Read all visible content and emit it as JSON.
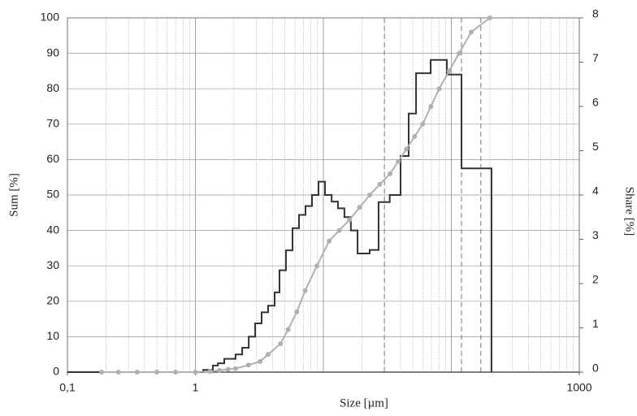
{
  "chart_data": {
    "type": "histogram",
    "xlabel": "Size [µm]",
    "ylabel": "Sum [%]",
    "y2label": "Share [%]",
    "xscale": "log",
    "xlim": [
      0.1,
      1000
    ],
    "xticks": [
      {
        "value": 0.1,
        "label": "0,1"
      },
      1,
      1000
    ],
    "ylim": [
      0,
      100
    ],
    "yticks": [
      0,
      10,
      20,
      30,
      40,
      50,
      60,
      70,
      80,
      90,
      100
    ],
    "y2lim": [
      0,
      8
    ],
    "y2ticks": [
      0,
      1,
      2,
      3,
      4,
      5,
      6,
      7,
      8
    ],
    "grid": true,
    "vlines": [
      30,
      120,
      170
    ],
    "series": [
      {
        "name": "Share",
        "type": "histogram",
        "axis": "y2",
        "color": "#333333",
        "bins": [
          1.15,
          1.37,
          1.5,
          1.68,
          2.06,
          2.32,
          2.61,
          2.93,
          3.29,
          3.7,
          4.16,
          4.54,
          5.1,
          5.74,
          6.45,
          7.25,
          8.15,
          9.16,
          10.3,
          11.6,
          13,
          14.6,
          16.4,
          18.5,
          23,
          27,
          33,
          40.1,
          46.4,
          53,
          61.3,
          68.9,
          92.2,
          120,
          143,
          206
        ],
        "values": [
          0.05,
          0.15,
          0.2,
          0.3,
          0.4,
          0.55,
          0.8,
          1.1,
          1.35,
          1.5,
          1.8,
          2.3,
          2.75,
          3.25,
          3.55,
          3.75,
          4.0,
          4.3,
          4.0,
          3.85,
          3.7,
          3.5,
          3.2,
          2.68,
          2.76,
          3.84,
          4.0,
          4.88,
          5.84,
          6.75,
          6.75,
          7.05,
          6.72,
          4.6,
          4.6
        ]
      },
      {
        "name": "Sum",
        "type": "line",
        "axis": "y",
        "color": "#b0b0b0",
        "x": [
          0.185,
          0.25,
          0.35,
          0.5,
          0.7,
          1.0,
          1.3,
          1.54,
          1.8,
          2.06,
          2.6,
          3.2,
          3.7,
          4.62,
          5.3,
          6.2,
          7.2,
          8.9,
          11.1,
          13.3,
          16.0,
          19.2,
          23.0,
          27.6,
          33.2,
          38.5,
          44.6,
          51.6,
          59.7,
          69.2,
          80.3,
          96,
          115,
          143,
          200
        ],
        "values": [
          0,
          0,
          0,
          0,
          0,
          0,
          0.2,
          0.5,
          0.8,
          1,
          2,
          3,
          5,
          8,
          12,
          17,
          23,
          30,
          37,
          40,
          43,
          46.5,
          50,
          53,
          56,
          59.5,
          63,
          66.5,
          70,
          75,
          80,
          85,
          90,
          96,
          100
        ]
      }
    ]
  }
}
